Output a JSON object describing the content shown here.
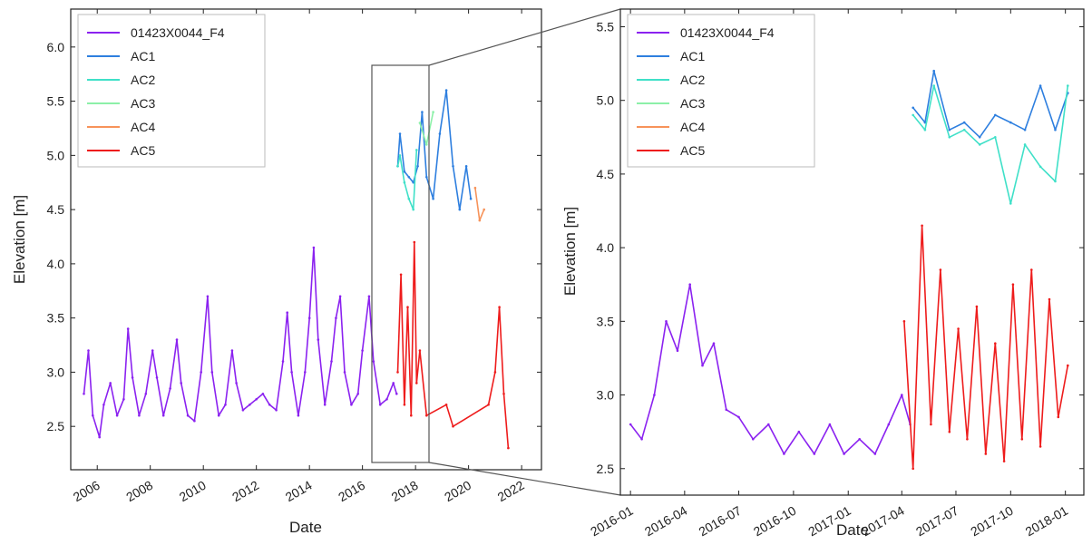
{
  "colors": {
    "01423X0044_F4": "#8B22F0",
    "AC1": "#2E7FDF",
    "AC2": "#3FE0C8",
    "AC3": "#8CF0A8",
    "AC4": "#F7935A",
    "AC5": "#EE1C1C"
  },
  "chart_data": [
    {
      "type": "line",
      "title": "",
      "xlabel": "Date",
      "ylabel": "Elevation [m]",
      "x_is_date": true,
      "xlim": [
        "2005-01-01",
        "2022-10-01"
      ],
      "ylim": [
        2.1,
        6.35
      ],
      "xticks": [
        "2006-01-01",
        "2008-01-01",
        "2010-01-01",
        "2012-01-01",
        "2014-01-01",
        "2016-01-01",
        "2018-01-01",
        "2020-01-01",
        "2022-01-01"
      ],
      "xtick_labels": [
        "2006",
        "2008",
        "2010",
        "2012",
        "2014",
        "2016",
        "2018",
        "2020",
        "2022"
      ],
      "yticks": [
        2.5,
        3.0,
        3.5,
        4.0,
        4.5,
        5.0,
        5.5,
        6.0
      ],
      "ytick_labels": [
        "2.5",
        "3.0",
        "3.5",
        "4.0",
        "4.5",
        "5.0",
        "5.5",
        "6.0"
      ],
      "legend": "top-left",
      "grid": false,
      "series": [
        {
          "name": "01423X0044_F4",
          "x": [
            "2005-07-01",
            "2005-09-01",
            "2005-11-01",
            "2006-02-01",
            "2006-04-01",
            "2006-07-01",
            "2006-10-01",
            "2007-01-01",
            "2007-03-01",
            "2007-05-01",
            "2007-08-01",
            "2007-11-01",
            "2008-02-01",
            "2008-04-01",
            "2008-07-01",
            "2008-10-01",
            "2009-01-01",
            "2009-03-01",
            "2009-06-01",
            "2009-09-01",
            "2009-12-01",
            "2010-03-01",
            "2010-05-01",
            "2010-08-01",
            "2010-11-01",
            "2011-02-01",
            "2011-04-01",
            "2011-07-01",
            "2011-10-01",
            "2012-01-01",
            "2012-04-01",
            "2012-07-01",
            "2012-10-01",
            "2013-01-01",
            "2013-03-01",
            "2013-05-01",
            "2013-08-01",
            "2013-11-01",
            "2014-01-01",
            "2014-03-01",
            "2014-05-01",
            "2014-08-01",
            "2014-11-01",
            "2015-01-01",
            "2015-03-01",
            "2015-05-01",
            "2015-08-01",
            "2015-11-01",
            "2016-01-01",
            "2016-04-01",
            "2016-06-01",
            "2016-09-01",
            "2016-12-01",
            "2017-03-01",
            "2017-04-15"
          ],
          "y": [
            2.8,
            3.2,
            2.6,
            2.4,
            2.7,
            2.9,
            2.6,
            2.75,
            3.4,
            2.95,
            2.6,
            2.8,
            3.2,
            2.95,
            2.6,
            2.85,
            3.3,
            2.9,
            2.6,
            2.55,
            3.0,
            3.7,
            3.0,
            2.6,
            2.7,
            3.2,
            2.9,
            2.65,
            2.7,
            2.75,
            2.8,
            2.7,
            2.65,
            3.1,
            3.55,
            3.0,
            2.6,
            3.0,
            3.5,
            4.15,
            3.3,
            2.7,
            3.1,
            3.5,
            3.7,
            3.0,
            2.7,
            2.8,
            3.2,
            3.7,
            3.1,
            2.7,
            2.75,
            2.9,
            2.8
          ]
        },
        {
          "name": "AC1",
          "x": [
            "2017-05-01",
            "2017-06-01",
            "2017-08-01",
            "2017-10-01",
            "2017-12-01",
            "2018-02-01",
            "2018-04-01",
            "2018-06-01",
            "2018-09-01",
            "2018-12-01",
            "2019-03-01",
            "2019-06-01",
            "2019-09-01",
            "2019-12-01",
            "2020-02-01"
          ],
          "y": [
            4.9,
            5.2,
            4.85,
            4.8,
            4.75,
            4.9,
            5.4,
            4.8,
            4.6,
            5.2,
            5.6,
            4.9,
            4.5,
            4.9,
            4.6
          ]
        },
        {
          "name": "AC2",
          "x": [
            "2017-05-01",
            "2017-06-01",
            "2017-08-01",
            "2017-10-01",
            "2017-12-01",
            "2018-01-15"
          ],
          "y": [
            4.9,
            5.0,
            4.75,
            4.6,
            4.5,
            5.05
          ]
        },
        {
          "name": "AC3",
          "x": [
            "2018-03-01",
            "2018-06-01",
            "2018-09-01"
          ],
          "y": [
            5.3,
            5.1,
            5.4
          ]
        },
        {
          "name": "AC4",
          "x": [
            "2020-04-01",
            "2020-06-01",
            "2020-08-01"
          ],
          "y": [
            4.7,
            4.4,
            4.5
          ]
        },
        {
          "name": "AC5",
          "x": [
            "2017-05-01",
            "2017-06-15",
            "2017-08-01",
            "2017-09-15",
            "2017-11-01",
            "2017-12-15",
            "2018-01-15",
            "2018-03-01",
            "2018-06-01",
            "2019-03-01",
            "2019-06-01",
            "2020-10-01",
            "2021-01-01",
            "2021-03-01",
            "2021-05-01",
            "2021-07-01"
          ],
          "y": [
            3.0,
            3.9,
            2.7,
            3.6,
            2.6,
            4.2,
            2.9,
            3.2,
            2.6,
            2.7,
            2.5,
            2.7,
            3.0,
            3.6,
            2.8,
            2.3
          ]
        }
      ]
    },
    {
      "type": "line",
      "title": "",
      "xlabel": "Date",
      "ylabel": "Elevation [m]",
      "x_is_date": true,
      "xlim": [
        "2015-12-15",
        "2018-02-01"
      ],
      "ylim": [
        2.32,
        5.62
      ],
      "xticks": [
        "2016-01-01",
        "2016-04-01",
        "2016-07-01",
        "2016-10-01",
        "2017-01-01",
        "2017-04-01",
        "2017-07-01",
        "2017-10-01",
        "2018-01-01"
      ],
      "xtick_labels": [
        "2016-01",
        "2016-04",
        "2016-07",
        "2016-10",
        "2017-01",
        "2017-04",
        "2017-07",
        "2017-10",
        "2018-01"
      ],
      "yticks": [
        2.5,
        3.0,
        3.5,
        4.0,
        4.5,
        5.0,
        5.5
      ],
      "ytick_labels": [
        "2.5",
        "3.0",
        "3.5",
        "4.0",
        "4.5",
        "5.0",
        "5.5"
      ],
      "legend": "top-left",
      "grid": false,
      "series": [
        {
          "name": "01423X0044_F4",
          "x": [
            "2016-01-01",
            "2016-01-20",
            "2016-02-10",
            "2016-03-01",
            "2016-03-20",
            "2016-04-10",
            "2016-05-01",
            "2016-05-20",
            "2016-06-10",
            "2016-07-01",
            "2016-07-25",
            "2016-08-20",
            "2016-09-15",
            "2016-10-10",
            "2016-11-05",
            "2016-12-01",
            "2016-12-25",
            "2017-01-20",
            "2017-02-15",
            "2017-03-10",
            "2017-04-01",
            "2017-04-15"
          ],
          "y": [
            2.8,
            2.7,
            3.0,
            3.5,
            3.3,
            3.75,
            3.2,
            3.35,
            2.9,
            2.85,
            2.7,
            2.8,
            2.6,
            2.75,
            2.6,
            2.8,
            2.6,
            2.7,
            2.6,
            2.8,
            3.0,
            2.8
          ]
        },
        {
          "name": "AC1",
          "x": [
            "2017-04-20",
            "2017-05-10",
            "2017-05-25",
            "2017-06-20",
            "2017-07-15",
            "2017-08-10",
            "2017-09-05",
            "2017-10-01",
            "2017-10-25",
            "2017-11-20",
            "2017-12-15",
            "2018-01-05"
          ],
          "y": [
            4.95,
            4.85,
            5.2,
            4.8,
            4.85,
            4.75,
            4.9,
            4.85,
            4.8,
            5.1,
            4.8,
            5.05
          ]
        },
        {
          "name": "AC2",
          "x": [
            "2017-04-20",
            "2017-05-10",
            "2017-05-25",
            "2017-06-20",
            "2017-07-15",
            "2017-08-10",
            "2017-09-05",
            "2017-10-01",
            "2017-10-25",
            "2017-11-20",
            "2017-12-15",
            "2018-01-05"
          ],
          "y": [
            4.9,
            4.8,
            5.1,
            4.75,
            4.8,
            4.7,
            4.75,
            4.3,
            4.7,
            4.55,
            4.45,
            5.1
          ]
        },
        {
          "name": "AC3",
          "x": [],
          "y": []
        },
        {
          "name": "AC4",
          "x": [],
          "y": []
        },
        {
          "name": "AC5",
          "x": [
            "2017-04-05",
            "2017-04-20",
            "2017-05-05",
            "2017-05-20",
            "2017-06-05",
            "2017-06-20",
            "2017-07-05",
            "2017-07-20",
            "2017-08-05",
            "2017-08-20",
            "2017-09-05",
            "2017-09-20",
            "2017-10-05",
            "2017-10-20",
            "2017-11-05",
            "2017-11-20",
            "2017-12-05",
            "2017-12-20",
            "2018-01-05"
          ],
          "y": [
            3.5,
            2.5,
            4.15,
            2.8,
            3.85,
            2.75,
            3.45,
            2.7,
            3.6,
            2.6,
            3.35,
            2.55,
            3.75,
            2.7,
            3.85,
            2.65,
            3.65,
            2.85,
            3.2
          ]
        }
      ]
    }
  ]
}
